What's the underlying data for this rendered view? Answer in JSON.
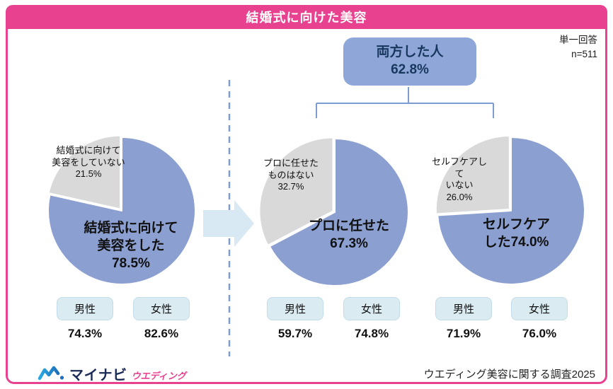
{
  "header": {
    "title": "結婚式に向けた美容"
  },
  "meta": {
    "answer_type": "単一回答",
    "sample_size": "n=511"
  },
  "both_box": {
    "label": "両方した人",
    "value": 62.8,
    "display": "62.8%"
  },
  "colors": {
    "accent_pink": "#E8418F",
    "pie_blue": "#8B9FD1",
    "pie_gray": "#D9D9D9",
    "box_blue": "#8FA6D9",
    "box_text": "#17375D",
    "connector_blue": "#7C9CD3",
    "arrow_blue": "#D9E9F3",
    "badge_bg": "#DAEBF1",
    "badge_border": "#C2DDE7",
    "brand_navy": "#1B2B57",
    "brand_cyan": "#2BA9E1",
    "brand_blue": "#1C6FBE"
  },
  "chart_data": [
    {
      "type": "pie",
      "slices": [
        {
          "label": "結婚式に向けて美容をした",
          "value": 78.5,
          "display": "78.5%",
          "color_key": "pie_blue",
          "label_lines": [
            "結婚式に向けて",
            "美容をした"
          ]
        },
        {
          "label": "結婚式に向けて美容をしていない",
          "value": 21.5,
          "display": "21.5%",
          "color_key": "pie_gray",
          "label_lines": [
            "結婚式に向けて",
            "美容をしていない"
          ]
        }
      ],
      "gender": [
        {
          "label": "男性",
          "value": 74.3,
          "display": "74.3%"
        },
        {
          "label": "女性",
          "value": 82.6,
          "display": "82.6%"
        }
      ]
    },
    {
      "type": "pie",
      "slices": [
        {
          "label": "プロに任せた",
          "value": 67.3,
          "display": "67.3%",
          "color_key": "pie_blue",
          "label_lines": [
            "プロに任せた"
          ]
        },
        {
          "label": "プロに任せたものはない",
          "value": 32.7,
          "display": "32.7%",
          "color_key": "pie_gray",
          "label_lines": [
            "プロに任せた",
            "ものはない"
          ]
        }
      ],
      "gender": [
        {
          "label": "男性",
          "value": 59.7,
          "display": "59.7%"
        },
        {
          "label": "女性",
          "value": 74.8,
          "display": "74.8%"
        }
      ]
    },
    {
      "type": "pie",
      "slices": [
        {
          "label": "セルフケアした",
          "value": 74.0,
          "display": "74.0%",
          "color_key": "pie_blue",
          "label_lines": [
            "セルフケア",
            "した74.0%"
          ]
        },
        {
          "label": "セルフケアしていない",
          "value": 26.0,
          "display": "26.0%",
          "color_key": "pie_gray",
          "label_lines": [
            "セルフケアし",
            "て",
            "いない"
          ]
        }
      ],
      "gender": [
        {
          "label": "男性",
          "value": 71.9,
          "display": "71.9%"
        },
        {
          "label": "女性",
          "value": 76.0,
          "display": "76.0%"
        }
      ]
    }
  ],
  "footer": {
    "brand": "マイナビ",
    "brand_sub": "ウエディング",
    "survey": "ウエディング美容に関する調査2025"
  }
}
